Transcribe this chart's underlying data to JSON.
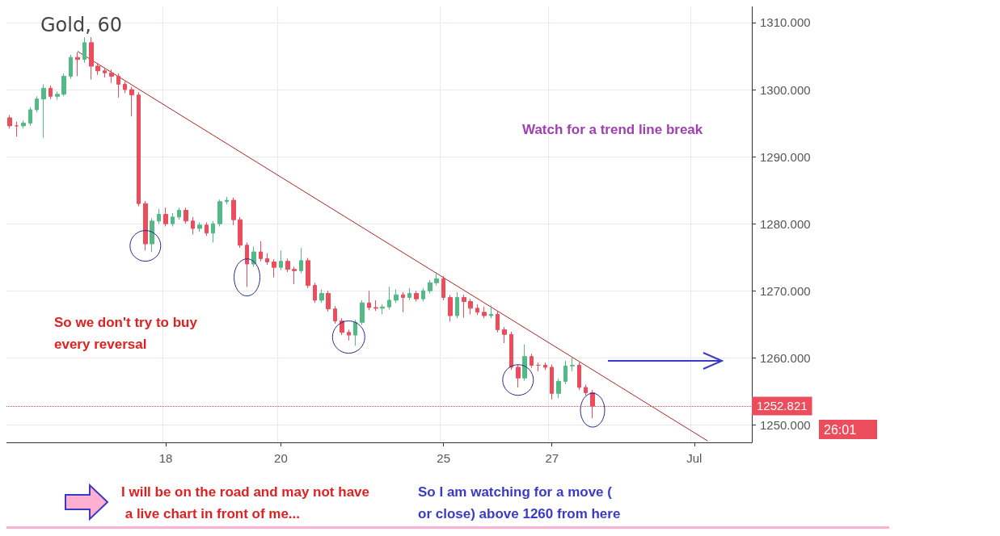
{
  "chart_data": {
    "type": "candlestick",
    "title": "Gold, 60",
    "categories": [
      null,
      null,
      null,
      null,
      null,
      null,
      null,
      null,
      null,
      null,
      null,
      null,
      null,
      null,
      null,
      null,
      null,
      null,
      null,
      null,
      null,
      null,
      null,
      "18",
      null,
      null,
      null,
      null,
      null,
      null,
      null,
      null,
      null,
      null,
      null,
      null,
      null,
      null,
      null,
      null,
      "20",
      null,
      null,
      null,
      null,
      null,
      null,
      null,
      null,
      null,
      null,
      null,
      null,
      null,
      null,
      null,
      null,
      null,
      null,
      null,
      null,
      null,
      null,
      null,
      "25",
      null,
      null,
      null,
      null,
      null,
      null,
      null,
      null,
      null,
      null,
      null,
      null,
      null,
      null,
      null,
      "27",
      null,
      null,
      null,
      null,
      null,
      null,
      null,
      null,
      null,
      null,
      null,
      null,
      null,
      null,
      null,
      null,
      null,
      null,
      null,
      null,
      "Jul",
      null,
      null,
      null,
      null,
      null,
      null,
      null,
      null
    ],
    "ohlc": [
      [
        1295.8,
        1296.2,
        1294.2,
        1294.6
      ],
      [
        1294.6,
        1295.2,
        1293.0,
        1294.6
      ],
      [
        1294.6,
        1295.4,
        1294.2,
        1295.0
      ],
      [
        1295.0,
        1297.4,
        1294.6,
        1297.0
      ],
      [
        1297.0,
        1299.0,
        1296.6,
        1298.6
      ],
      [
        1298.6,
        1300.8,
        1292.8,
        1300.2
      ],
      [
        1300.2,
        1300.6,
        1298.6,
        1299.0
      ],
      [
        1299.0,
        1299.7,
        1298.5,
        1299.3
      ],
      [
        1299.3,
        1302.4,
        1299.0,
        1302.0
      ],
      [
        1302.0,
        1305.2,
        1301.6,
        1304.8
      ],
      [
        1304.8,
        1305.6,
        1302.0,
        1304.5
      ],
      [
        1304.5,
        1307.8,
        1304.0,
        1307.0
      ],
      [
        1307.0,
        1307.8,
        1301.5,
        1303.5
      ],
      [
        1303.5,
        1304.0,
        1302.2,
        1302.8
      ],
      [
        1302.8,
        1303.3,
        1301.8,
        1302.5
      ],
      [
        1302.5,
        1303.0,
        1301.0,
        1302.0
      ],
      [
        1302.0,
        1302.4,
        1298.8,
        1300.8
      ],
      [
        1300.8,
        1301.2,
        1299.5,
        1300.0
      ],
      [
        1300.0,
        1300.4,
        1296.0,
        1299.2
      ],
      [
        1299.2,
        1299.6,
        1282.6,
        1283.0
      ],
      [
        1283.0,
        1283.4,
        1276.0,
        1277.0
      ],
      [
        1277.0,
        1280.8,
        1275.8,
        1280.4
      ],
      [
        1280.4,
        1282.2,
        1280.0,
        1281.4
      ],
      [
        1281.4,
        1282.4,
        1279.6,
        1280.0
      ],
      [
        1280.0,
        1281.6,
        1279.6,
        1281.0
      ],
      [
        1281.0,
        1282.4,
        1280.6,
        1282.0
      ],
      [
        1282.0,
        1282.4,
        1280.0,
        1280.4
      ],
      [
        1280.4,
        1281.0,
        1278.4,
        1279.3
      ],
      [
        1279.3,
        1280.2,
        1278.8,
        1279.8
      ],
      [
        1279.8,
        1280.2,
        1278.2,
        1278.6
      ],
      [
        1278.6,
        1280.4,
        1277.2,
        1280.0
      ],
      [
        1280.0,
        1283.6,
        1279.6,
        1283.3
      ],
      [
        1283.3,
        1284.0,
        1282.9,
        1283.5
      ],
      [
        1283.5,
        1283.9,
        1279.8,
        1280.6
      ],
      [
        1280.6,
        1281.0,
        1276.4,
        1276.8
      ],
      [
        1276.8,
        1277.2,
        1270.6,
        1274.0
      ],
      [
        1274.0,
        1276.6,
        1273.6,
        1275.8
      ],
      [
        1275.8,
        1277.4,
        1274.4,
        1274.8
      ],
      [
        1274.8,
        1275.6,
        1273.9,
        1274.3
      ],
      [
        1274.3,
        1274.7,
        1272.0,
        1273.5
      ],
      [
        1273.5,
        1276.0,
        1273.1,
        1274.4
      ],
      [
        1274.4,
        1274.8,
        1272.8,
        1273.2
      ],
      [
        1273.2,
        1273.6,
        1271.0,
        1273.0
      ],
      [
        1273.0,
        1276.4,
        1272.6,
        1274.5
      ],
      [
        1274.5,
        1274.9,
        1270.4,
        1270.8
      ],
      [
        1270.8,
        1271.2,
        1268.2,
        1268.6
      ],
      [
        1268.6,
        1270.2,
        1268.2,
        1269.6
      ],
      [
        1269.6,
        1270.0,
        1266.9,
        1267.3
      ],
      [
        1267.3,
        1267.7,
        1265.1,
        1265.5
      ],
      [
        1265.5,
        1265.9,
        1263.4,
        1263.8
      ],
      [
        1263.8,
        1264.2,
        1262.6,
        1263.4
      ],
      [
        1263.4,
        1265.7,
        1261.8,
        1265.3
      ],
      [
        1265.3,
        1268.6,
        1264.9,
        1268.2
      ],
      [
        1268.2,
        1270.0,
        1267.1,
        1267.5
      ],
      [
        1267.5,
        1268.6,
        1267.0,
        1267.4
      ],
      [
        1267.4,
        1268.0,
        1266.5,
        1267.6
      ],
      [
        1267.6,
        1270.6,
        1267.2,
        1268.6
      ],
      [
        1268.6,
        1270.2,
        1268.2,
        1269.4
      ],
      [
        1269.4,
        1269.8,
        1266.8,
        1269.0
      ],
      [
        1269.0,
        1270.4,
        1268.6,
        1269.6
      ],
      [
        1269.6,
        1270.0,
        1268.4,
        1268.8
      ],
      [
        1268.8,
        1270.4,
        1268.4,
        1270.0
      ],
      [
        1270.0,
        1271.6,
        1269.6,
        1271.2
      ],
      [
        1271.2,
        1272.8,
        1270.8,
        1271.8
      ],
      [
        1271.8,
        1272.2,
        1268.6,
        1269.0
      ],
      [
        1269.0,
        1269.4,
        1265.4,
        1266.3
      ],
      [
        1266.3,
        1269.8,
        1265.9,
        1269.0
      ],
      [
        1269.0,
        1269.4,
        1266.0,
        1268.4
      ],
      [
        1268.4,
        1268.8,
        1266.5,
        1267.4
      ],
      [
        1267.4,
        1268.0,
        1266.4,
        1266.8
      ],
      [
        1266.8,
        1267.6,
        1265.9,
        1266.3
      ],
      [
        1266.3,
        1267.8,
        1265.9,
        1266.5
      ],
      [
        1266.5,
        1266.9,
        1263.8,
        1264.2
      ],
      [
        1264.2,
        1264.6,
        1262.2,
        1263.5
      ],
      [
        1263.5,
        1263.9,
        1258.2,
        1258.6
      ],
      [
        1258.6,
        1259.0,
        1255.6,
        1257.0
      ],
      [
        1257.0,
        1262.0,
        1256.6,
        1260.2
      ],
      [
        1260.2,
        1260.6,
        1258.5,
        1258.9
      ],
      [
        1258.9,
        1259.3,
        1258.0,
        1258.9
      ],
      [
        1258.9,
        1259.3,
        1258.2,
        1258.6
      ],
      [
        1258.6,
        1259.0,
        1253.8,
        1254.7
      ],
      [
        1254.7,
        1256.9,
        1254.0,
        1256.5
      ],
      [
        1256.5,
        1259.6,
        1256.1,
        1258.8
      ],
      [
        1258.8,
        1260.0,
        1258.0,
        1258.9
      ],
      [
        1258.9,
        1259.3,
        1255.2,
        1255.6
      ],
      [
        1255.6,
        1256.0,
        1254.4,
        1254.8
      ],
      [
        1254.8,
        1255.2,
        1251.0,
        1252.8
      ],
      null,
      null,
      null,
      null,
      null,
      null,
      null,
      null,
      null,
      null,
      null,
      null,
      null,
      null,
      null,
      null,
      null,
      null,
      null,
      null,
      null,
      null,
      null
    ],
    "colors": [
      "#eb4d5c",
      "#eb4d5c",
      "#53b987",
      "#53b987",
      "#53b987",
      "#53b987",
      "#eb4d5c",
      "#53b987",
      "#53b987",
      "#53b987",
      "#eb4d5c",
      "#53b987",
      "#eb4d5c",
      "#eb4d5c",
      "#eb4d5c",
      "#eb4d5c",
      "#eb4d5c",
      "#eb4d5c",
      "#eb4d5c",
      "#eb4d5c",
      "#eb4d5c",
      "#53b987",
      "#53b987",
      "#eb4d5c",
      "#53b987",
      "#53b987",
      "#eb4d5c",
      "#eb4d5c",
      "#53b987",
      "#eb4d5c",
      "#53b987",
      "#53b987",
      "#53b987",
      "#eb4d5c",
      "#eb4d5c",
      "#eb4d5c",
      "#53b987",
      "#eb4d5c",
      "#eb4d5c",
      "#eb4d5c",
      "#53b987",
      "#eb4d5c",
      "#eb4d5c",
      "#53b987",
      "#eb4d5c",
      "#eb4d5c",
      "#53b987",
      "#eb4d5c",
      "#eb4d5c",
      "#eb4d5c",
      "#eb4d5c",
      "#53b987",
      "#53b987",
      "#eb4d5c",
      "#eb4d5c",
      "#53b987",
      "#53b987",
      "#53b987",
      "#eb4d5c",
      "#53b987",
      "#eb4d5c",
      "#53b987",
      "#53b987",
      "#53b987",
      "#eb4d5c",
      "#eb4d5c",
      "#53b987",
      "#eb4d5c",
      "#eb4d5c",
      "#eb4d5c",
      "#eb4d5c",
      "#53b987",
      "#eb4d5c",
      "#eb4d5c",
      "#eb4d5c",
      "#eb4d5c",
      "#53b987",
      "#eb4d5c",
      "#eb4d5c",
      "#eb4d5c",
      "#eb4d5c",
      "#53b987",
      "#53b987",
      "#53b987",
      "#eb4d5c",
      "#eb4d5c",
      "#eb4d5c",
      null,
      null,
      null,
      null,
      null,
      null,
      null,
      null,
      null,
      null,
      null,
      null,
      null,
      null,
      null,
      null,
      null,
      null,
      null,
      null,
      null,
      null,
      null
    ],
    "series": [
      {
        "type": "line",
        "color": "#b22222",
        "values": [
          null,
          null,
          null,
          null,
          null,
          null,
          null,
          null,
          null,
          null,
          1305.7,
          null,
          null,
          null,
          null,
          null,
          null,
          null,
          null,
          null,
          null,
          null,
          null,
          null,
          null,
          null,
          null,
          null,
          null,
          null,
          null,
          null,
          null,
          null,
          null,
          null,
          null,
          null,
          null,
          null,
          null,
          null,
          null,
          null,
          null,
          null,
          null,
          null,
          null,
          null,
          null,
          null,
          null,
          null,
          null,
          null,
          null,
          null,
          null,
          null,
          null,
          null,
          null,
          null,
          null,
          null,
          null,
          null,
          null,
          null,
          null,
          null,
          null,
          null,
          null,
          null,
          null,
          null,
          null,
          null,
          null,
          null,
          null,
          null,
          null,
          null,
          null,
          null,
          null,
          null,
          null,
          null,
          null,
          null,
          null,
          null,
          null,
          null,
          null,
          null,
          null,
          null,
          null,
          1247.6,
          null,
          null,
          null,
          null,
          null,
          null
        ]
      }
    ],
    "ylim": [
      1247.4,
      1312.4
    ],
    "yticks": [
      {
        "value": 1250,
        "label": "1250.000"
      },
      {
        "value": 1260,
        "label": "1260.000"
      },
      {
        "value": 1270,
        "label": "1270.000"
      },
      {
        "value": 1280,
        "label": "1280.000"
      },
      {
        "value": 1290,
        "label": "1290.000"
      },
      {
        "value": 1300,
        "label": "1300.000"
      },
      {
        "value": 1310,
        "label": "1310.000"
      }
    ],
    "grid": true,
    "ref_lines": [
      {
        "axis": "y",
        "value": 1252.821,
        "label": "1252.821",
        "color": "#eb4d5c",
        "line_style": "dotted"
      }
    ],
    "annotations": [
      "Watch for a trend line break",
      "So we don't try to buy every reversal",
      "I will be on the road and may not have a live chart in front of me...",
      "So I am watching for a move ( or close) above 1260 from here",
      "26:01"
    ]
  }
}
